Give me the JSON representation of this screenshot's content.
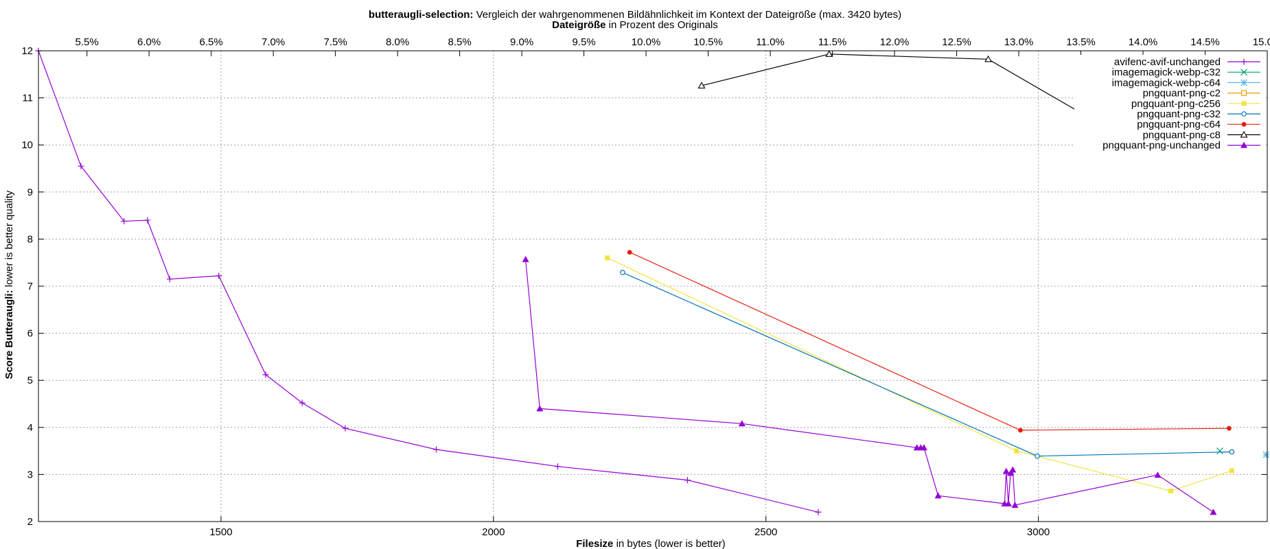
{
  "chart_data": {
    "type": "line",
    "title_bold": "butteraugli-selection:",
    "title_rest": " Vergleich der wahrgenommenen Bildähnlichkeit im Kontext der Dateigröße (max. 3420 bytes)",
    "x2label_bold": "Dateigröße",
    "x2label_rest": " in Prozent des Originals",
    "xlabel_bold": "Filesize",
    "xlabel_rest": " in bytes (lower is better)",
    "ylabel_bold": "Score Butteraugli:",
    "ylabel_rest": " lower is better quality",
    "xlim": [
      1165,
      3420
    ],
    "ylim": [
      2,
      12
    ],
    "x_ticks": [
      1500,
      2000,
      2500,
      3000
    ],
    "y_ticks": [
      2,
      3,
      4,
      5,
      6,
      7,
      8,
      9,
      10,
      11,
      12
    ],
    "x2_ticks": [
      "5.5%",
      "6.0%",
      "6.5%",
      "7.0%",
      "7.5%",
      "8.0%",
      "8.5%",
      "9.0%",
      "9.5%",
      "10.0%",
      "10.5%",
      "11.0%",
      "11.5%",
      "12.0%",
      "12.5%",
      "13.0%",
      "13.5%",
      "14.0%",
      "14.5%",
      "15.0%"
    ],
    "x2_tick_bytes": [
      1254,
      1368,
      1482,
      1596,
      1710,
      1824,
      1938,
      2052,
      2166,
      2280,
      2394,
      2508,
      2622,
      2736,
      2850,
      2964,
      3078,
      3192,
      3306,
      3420
    ],
    "grid": true,
    "legend_position": "top-right",
    "series": [
      {
        "name": "avifenc-avif-unchanged",
        "color": "#9400d3",
        "marker": "plus",
        "x": [
          1165,
          1243,
          1322,
          1365,
          1406,
          1496,
          1582,
          1649,
          1728,
          1895,
          2118,
          2356,
          2596
        ],
        "y": [
          12.0,
          9.55,
          8.38,
          8.4,
          7.15,
          7.22,
          5.12,
          4.52,
          3.98,
          3.53,
          3.17,
          2.88,
          2.2
        ]
      },
      {
        "name": "imagemagick-webp-c32",
        "color": "#009e73",
        "marker": "cross",
        "x": [
          3333
        ],
        "y": [
          3.5
        ]
      },
      {
        "name": "imagemagick-webp-c64",
        "color": "#56b4e9",
        "marker": "asterisk",
        "x": [
          3418
        ],
        "y": [
          3.42
        ]
      },
      {
        "name": "pngquant-png-c2",
        "color": "#e69f00",
        "marker": "open-square",
        "x": [],
        "y": []
      },
      {
        "name": "pngquant-png-c256",
        "color": "#f0e442",
        "marker": "filled-square",
        "x": [
          2209,
          2960,
          3243,
          3355
        ],
        "y": [
          7.6,
          3.5,
          2.65,
          3.08
        ]
      },
      {
        "name": "pngquant-png-c32",
        "color": "#0072b2",
        "marker": "open-circle",
        "x": [
          2237,
          2998,
          3355
        ],
        "y": [
          7.29,
          3.39,
          3.48
        ]
      },
      {
        "name": "pngquant-png-c64",
        "color": "#e51e10",
        "marker": "filled-circle",
        "x": [
          2250,
          2967,
          3350
        ],
        "y": [
          7.72,
          3.94,
          3.98
        ]
      },
      {
        "name": "pngquant-png-c8",
        "color": "#000000",
        "marker": "open-triangle",
        "x": [
          2382,
          2616,
          2908,
          3102
        ],
        "y": [
          11.26,
          11.93,
          11.82,
          10.52
        ]
      },
      {
        "name": "pngquant-png-unchanged",
        "color": "#9400d3",
        "marker": "filled-triangle",
        "x": [
          2059,
          2085,
          2456,
          2777,
          2784,
          2790,
          2816,
          2938,
          2941,
          2945,
          2949,
          2953,
          2957,
          3219,
          3321
        ],
        "y": [
          7.57,
          4.4,
          4.08,
          3.57,
          3.57,
          3.57,
          2.55,
          2.38,
          3.07,
          2.38,
          3.03,
          3.1,
          2.35,
          2.99,
          2.2
        ]
      }
    ]
  }
}
